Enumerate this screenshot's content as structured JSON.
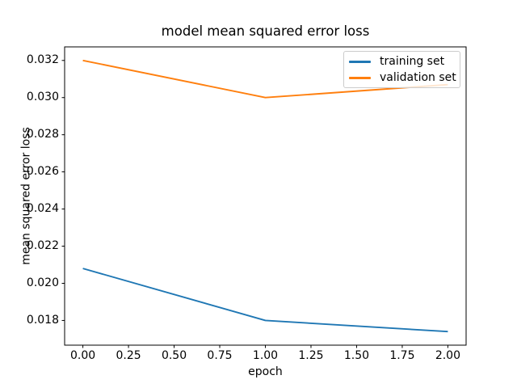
{
  "figure": {
    "background": "#ffffff"
  },
  "chart_data": {
    "type": "line",
    "title": "model mean squared error loss",
    "xlabel": "epoch",
    "ylabel": "mean squared error loss",
    "x": [
      0,
      1,
      2
    ],
    "series": [
      {
        "name": "training set",
        "color": "#1f77b4",
        "values": [
          0.0208,
          0.018,
          0.0174
        ]
      },
      {
        "name": "validation set",
        "color": "#ff7f0e",
        "values": [
          0.032,
          0.03,
          0.0307
        ]
      }
    ],
    "xlim": [
      -0.1,
      2.1
    ],
    "ylim": [
      0.01667,
      0.03273
    ],
    "xticks": [
      0.0,
      0.25,
      0.5,
      0.75,
      1.0,
      1.25,
      1.5,
      1.75,
      2.0
    ],
    "xtick_labels": [
      "0.00",
      "0.25",
      "0.50",
      "0.75",
      "1.00",
      "1.25",
      "1.50",
      "1.75",
      "2.00"
    ],
    "yticks": [
      0.018,
      0.02,
      0.022,
      0.024,
      0.026,
      0.028,
      0.03,
      0.032
    ],
    "ytick_labels": [
      "0.018",
      "0.020",
      "0.022",
      "0.024",
      "0.026",
      "0.028",
      "0.030",
      "0.032"
    ],
    "legend": {
      "position": "upper right",
      "entries": [
        "training set",
        "validation set"
      ]
    },
    "grid": false,
    "axis_color": "#000000"
  }
}
